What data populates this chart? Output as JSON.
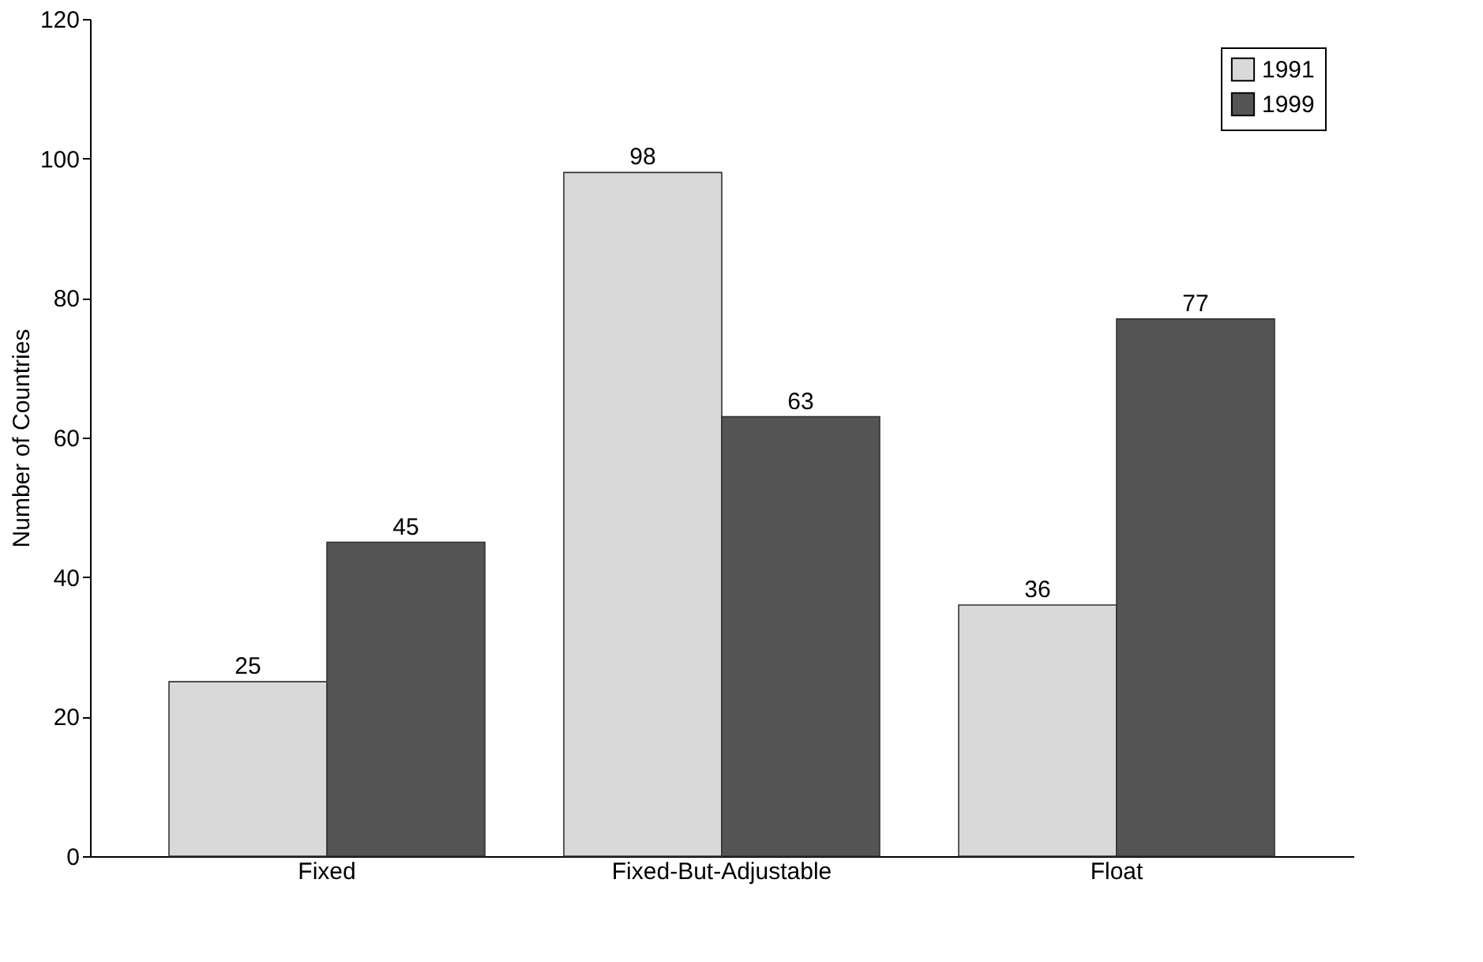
{
  "chart_data": {
    "type": "bar",
    "ylabel": "Number of Countries",
    "categories": [
      "Fixed",
      "Fixed-But-Adjustable",
      "Float"
    ],
    "series": [
      {
        "name": "1991",
        "color": "#d9d9d9",
        "values": [
          25,
          98,
          36
        ]
      },
      {
        "name": "1999",
        "color": "#555555",
        "values": [
          45,
          63,
          77
        ]
      }
    ],
    "ylim": [
      0,
      120
    ],
    "yticks": [
      0,
      20,
      40,
      60,
      80,
      100,
      120
    ],
    "data_labels": true,
    "legend": "top right",
    "grid": false
  }
}
